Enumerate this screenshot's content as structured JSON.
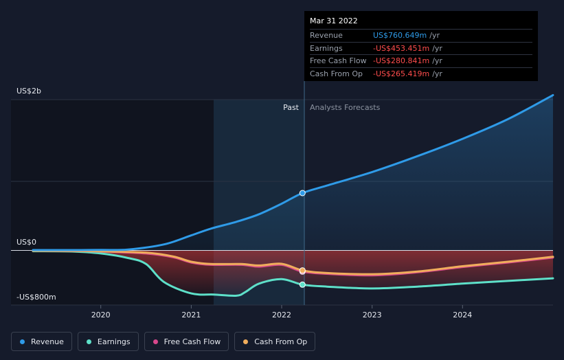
{
  "chart_data": {
    "type": "line",
    "y_axis_labels": [
      "US$2b",
      "US$0",
      "-US$800m"
    ],
    "ylim": [
      -800,
      2000
    ],
    "xlim": [
      2019.25,
      2025.0
    ],
    "x_ticks": [
      {
        "value": 2020,
        "label": "2020"
      },
      {
        "value": 2021,
        "label": "2021"
      },
      {
        "value": 2022,
        "label": "2022"
      },
      {
        "value": 2023,
        "label": "2023"
      },
      {
        "value": 2024,
        "label": "2024"
      }
    ],
    "past_label": "Past",
    "forecast_label": "Analysts Forecasts",
    "past_start_x": 2020.22,
    "divider_x": 2022.23,
    "series": [
      {
        "name": "Revenue",
        "color": "#2f9be8",
        "points": [
          [
            2019.25,
            5
          ],
          [
            2019.6,
            5
          ],
          [
            2020.0,
            6
          ],
          [
            2020.3,
            12
          ],
          [
            2020.7,
            80
          ],
          [
            2021.0,
            200
          ],
          [
            2021.22,
            290
          ],
          [
            2021.5,
            380
          ],
          [
            2021.75,
            480
          ],
          [
            2022.0,
            620
          ],
          [
            2022.23,
            760.649
          ],
          [
            2022.5,
            860
          ],
          [
            2023.0,
            1040
          ],
          [
            2023.5,
            1250
          ],
          [
            2024.0,
            1480
          ],
          [
            2024.5,
            1740
          ],
          [
            2025.0,
            2060
          ]
        ]
      },
      {
        "name": "Earnings",
        "color": "#5ee0c9",
        "points": [
          [
            2019.25,
            -10
          ],
          [
            2019.7,
            -15
          ],
          [
            2020.0,
            -40
          ],
          [
            2020.3,
            -100
          ],
          [
            2020.5,
            -180
          ],
          [
            2020.7,
            -420
          ],
          [
            2021.0,
            -570
          ],
          [
            2021.25,
            -585
          ],
          [
            2021.5,
            -600
          ],
          [
            2021.6,
            -550
          ],
          [
            2021.75,
            -440
          ],
          [
            2022.0,
            -380
          ],
          [
            2022.23,
            -453.451
          ],
          [
            2022.5,
            -480
          ],
          [
            2023.0,
            -505
          ],
          [
            2023.5,
            -480
          ],
          [
            2024.0,
            -440
          ],
          [
            2024.5,
            -405
          ],
          [
            2025.0,
            -370
          ]
        ]
      },
      {
        "name": "Free Cash Flow",
        "color": "#d8478c",
        "points": [
          [
            2019.25,
            -5
          ],
          [
            2019.7,
            -6
          ],
          [
            2020.0,
            -15
          ],
          [
            2020.5,
            -40
          ],
          [
            2020.8,
            -90
          ],
          [
            2021.0,
            -160
          ],
          [
            2021.22,
            -190
          ],
          [
            2021.55,
            -190
          ],
          [
            2021.75,
            -215
          ],
          [
            2022.0,
            -190
          ],
          [
            2022.23,
            -280.841
          ],
          [
            2022.5,
            -310
          ],
          [
            2023.0,
            -330
          ],
          [
            2023.5,
            -290
          ],
          [
            2024.0,
            -220
          ],
          [
            2024.5,
            -160
          ],
          [
            2025.0,
            -95
          ]
        ]
      },
      {
        "name": "Cash From Op",
        "color": "#f0ad5c",
        "points": [
          [
            2019.25,
            -5
          ],
          [
            2019.7,
            -6
          ],
          [
            2020.0,
            -12
          ],
          [
            2020.5,
            -30
          ],
          [
            2020.8,
            -80
          ],
          [
            2021.0,
            -150
          ],
          [
            2021.22,
            -180
          ],
          [
            2021.55,
            -180
          ],
          [
            2021.75,
            -200
          ],
          [
            2022.0,
            -178
          ],
          [
            2022.23,
            -265.419
          ],
          [
            2022.5,
            -300
          ],
          [
            2023.0,
            -315
          ],
          [
            2023.5,
            -280
          ],
          [
            2024.0,
            -210
          ],
          [
            2024.5,
            -150
          ],
          [
            2025.0,
            -85
          ]
        ]
      }
    ]
  },
  "tooltip": {
    "date": "Mar 31 2022",
    "rows": [
      {
        "name": "Revenue",
        "value": "US$760.649m",
        "unit": "/yr",
        "sign": "pos"
      },
      {
        "name": "Earnings",
        "value": "-US$453.451m",
        "unit": "/yr",
        "sign": "neg"
      },
      {
        "name": "Free Cash Flow",
        "value": "-US$280.841m",
        "unit": "/yr",
        "sign": "neg"
      },
      {
        "name": "Cash From Op",
        "value": "-US$265.419m",
        "unit": "/yr",
        "sign": "neg"
      }
    ]
  },
  "legend": [
    {
      "label": "Revenue",
      "color": "#2f9be8"
    },
    {
      "label": "Earnings",
      "color": "#5ee0c9"
    },
    {
      "label": "Free Cash Flow",
      "color": "#d8478c"
    },
    {
      "label": "Cash From Op",
      "color": "#f0ad5c"
    }
  ]
}
